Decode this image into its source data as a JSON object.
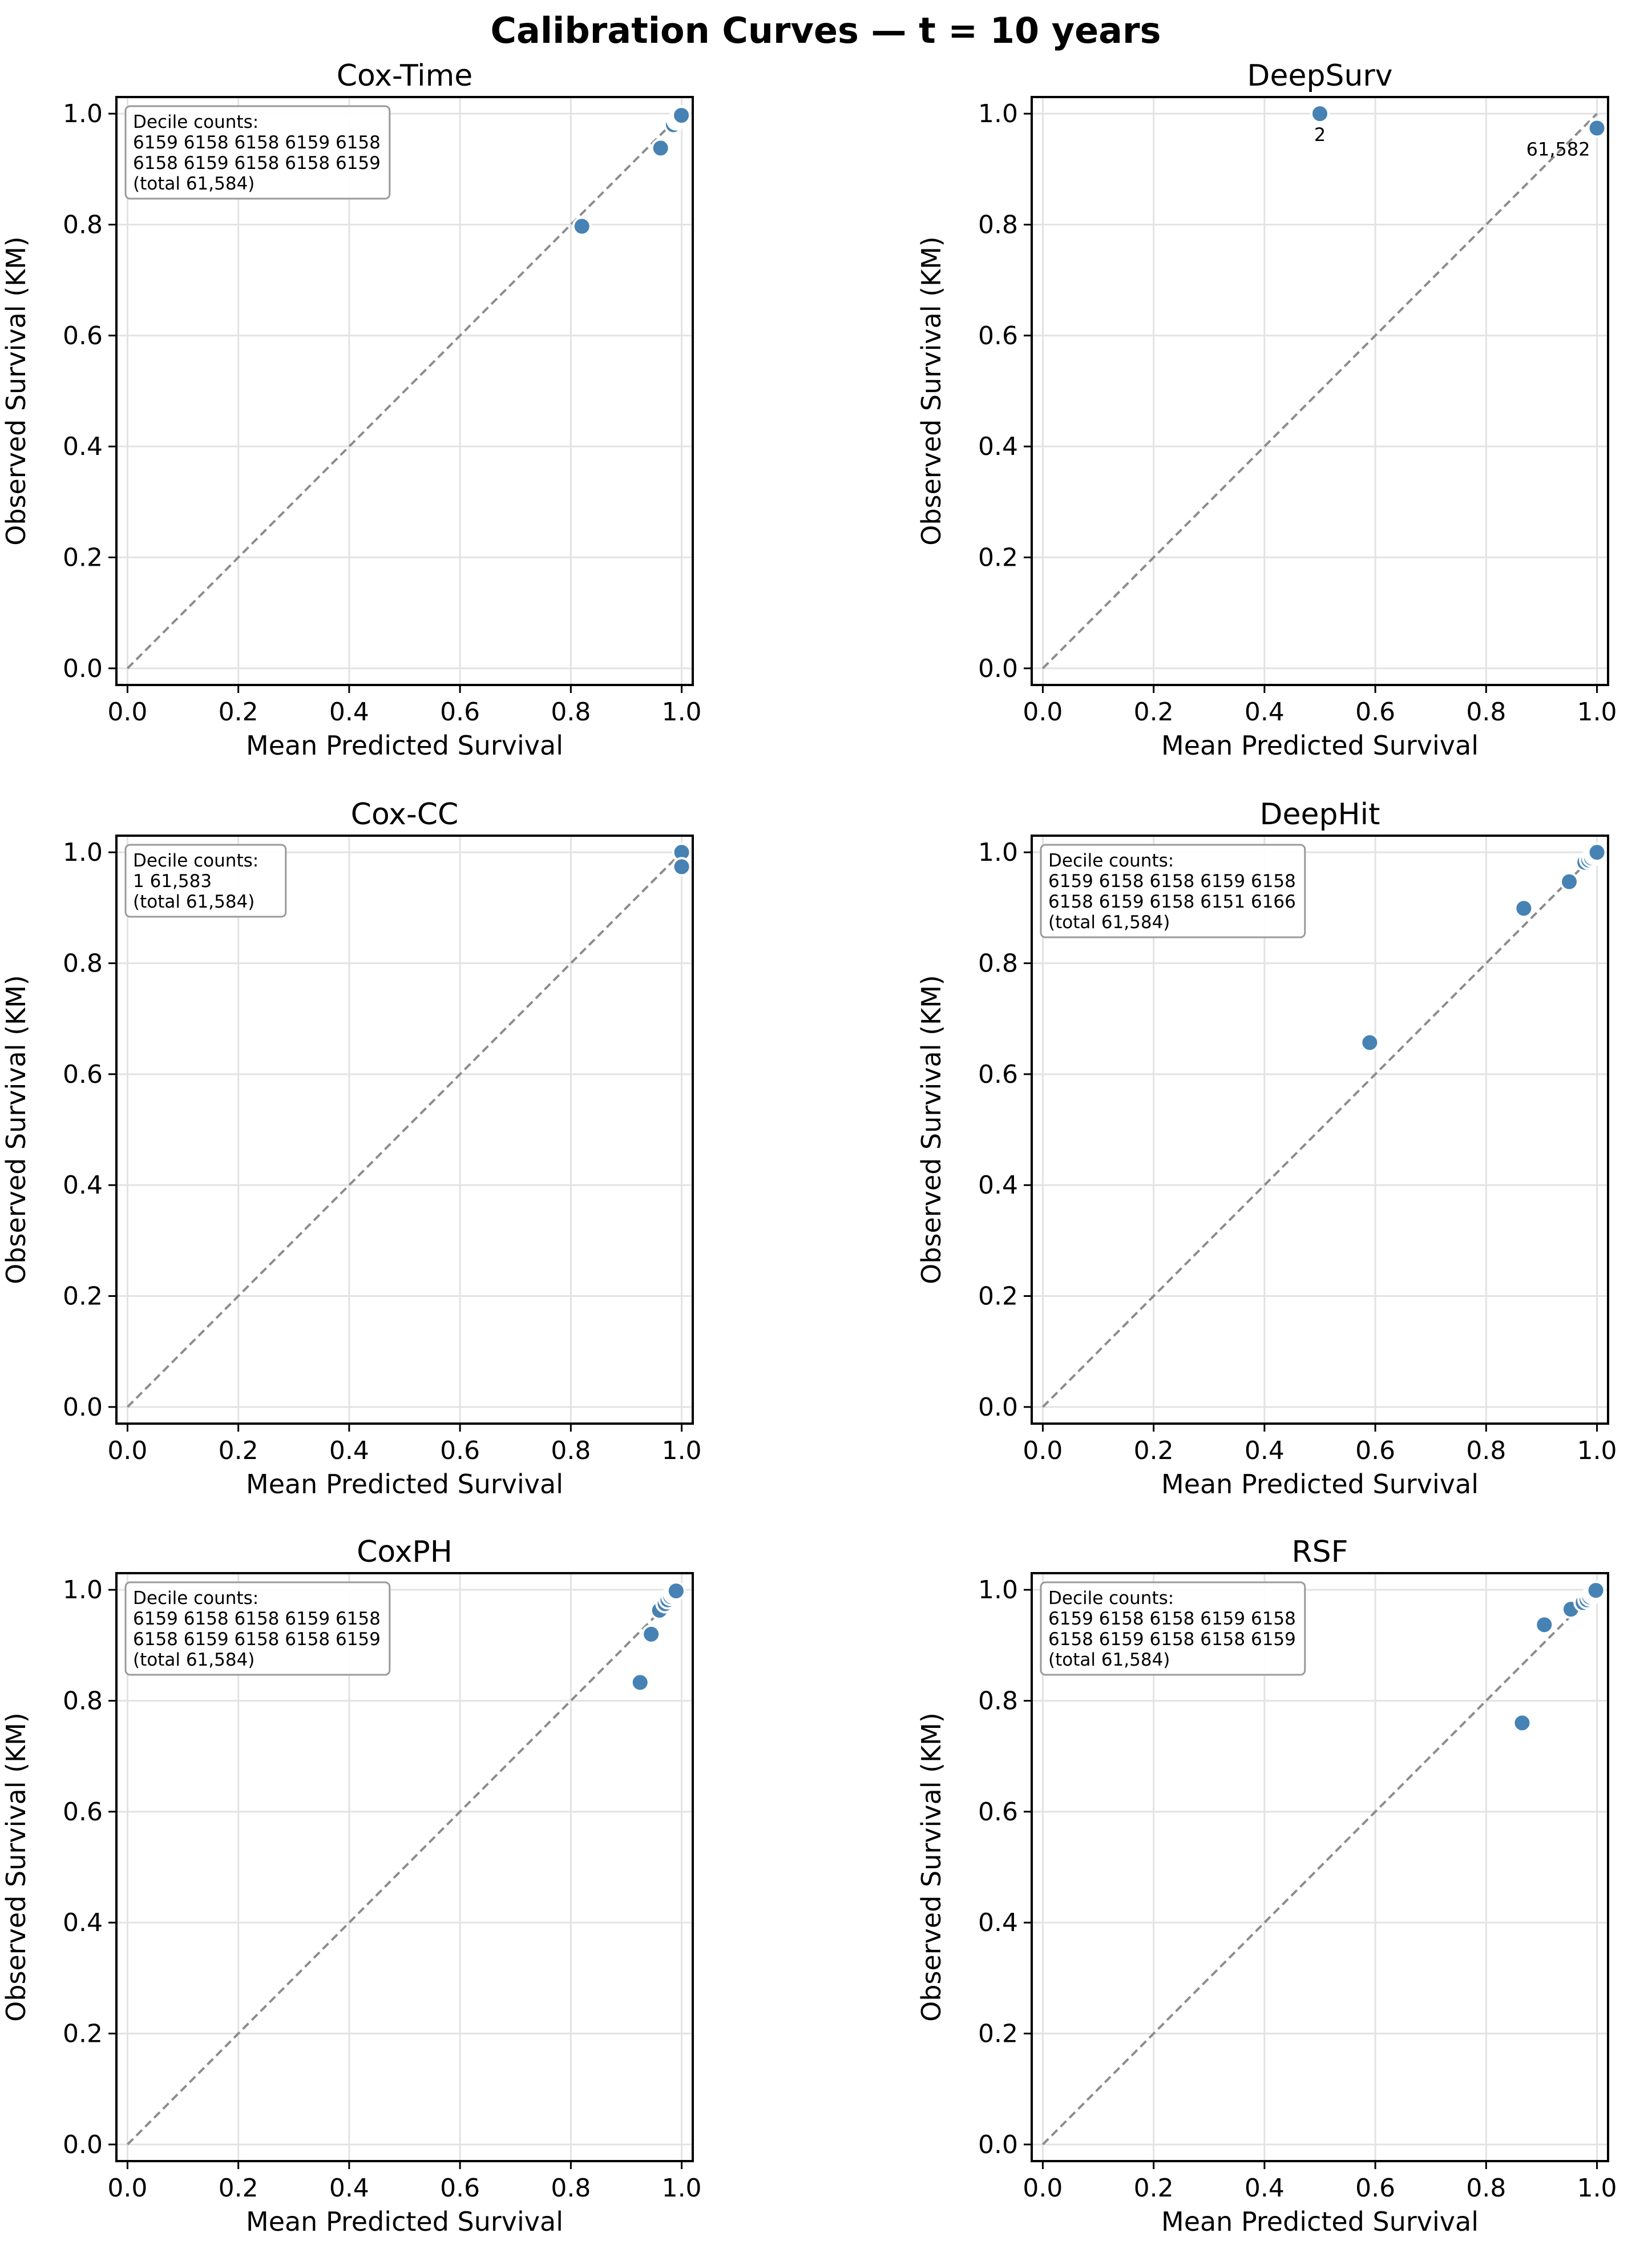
{
  "figure": {
    "title": "Calibration Curves — t = 10 years",
    "point_color": "#4682b4",
    "diagonal_color": "#8c8c8c"
  },
  "chart_data": [
    {
      "type": "scatter",
      "title": "Cox-Time",
      "xlabel": "Mean Predicted Survival",
      "ylabel": "Observed Survival (KM)",
      "xlim": [
        0.0,
        1.0
      ],
      "ylim": [
        0.0,
        1.0
      ],
      "xticks": [
        "0.0",
        "0.2",
        "0.4",
        "0.6",
        "0.8",
        "1.0"
      ],
      "yticks": [
        "0.0",
        "0.2",
        "0.4",
        "0.6",
        "0.8",
        "1.0"
      ],
      "grid": true,
      "points": [
        [
          0.82,
          0.797
        ],
        [
          0.962,
          0.938
        ],
        [
          0.985,
          0.98
        ],
        [
          0.99,
          0.987
        ],
        [
          0.993,
          0.99
        ],
        [
          0.995,
          0.992
        ],
        [
          0.997,
          0.994
        ],
        [
          0.998,
          0.995
        ],
        [
          0.999,
          0.996
        ],
        [
          0.9995,
          0.997
        ]
      ],
      "point_labels": [],
      "annotation_lines": [
        "Decile counts:",
        "6159 6158 6158 6159 6158",
        "6158 6159 6158 6158 6159",
        "(total 61,584)"
      ]
    },
    {
      "type": "scatter",
      "title": "DeepSurv",
      "xlabel": "Mean Predicted Survival",
      "ylabel": "Observed Survival (KM)",
      "xlim": [
        0.0,
        1.0
      ],
      "ylim": [
        0.0,
        1.0
      ],
      "xticks": [
        "0.0",
        "0.2",
        "0.4",
        "0.6",
        "0.8",
        "1.0"
      ],
      "yticks": [
        "0.0",
        "0.2",
        "0.4",
        "0.6",
        "0.8",
        "1.0"
      ],
      "grid": true,
      "points": [
        [
          0.5,
          1.0
        ],
        [
          1.0,
          0.974
        ]
      ],
      "point_labels": [
        "2",
        "61,582"
      ],
      "annotation_lines": []
    },
    {
      "type": "scatter",
      "title": "Cox-CC",
      "xlabel": "Mean Predicted Survival",
      "ylabel": "Observed Survival (KM)",
      "xlim": [
        0.0,
        1.0
      ],
      "ylim": [
        0.0,
        1.0
      ],
      "xticks": [
        "0.0",
        "0.2",
        "0.4",
        "0.6",
        "0.8",
        "1.0"
      ],
      "yticks": [
        "0.0",
        "0.2",
        "0.4",
        "0.6",
        "0.8",
        "1.0"
      ],
      "grid": true,
      "points": [
        [
          1.0,
          1.0
        ],
        [
          1.0,
          0.974
        ]
      ],
      "point_labels": [],
      "annotation_lines": [
        "Decile counts:",
        "1 61,583",
        "(total 61,584)"
      ]
    },
    {
      "type": "scatter",
      "title": "DeepHit",
      "xlabel": "Mean Predicted Survival",
      "ylabel": "Observed Survival (KM)",
      "xlim": [
        0.0,
        1.0
      ],
      "ylim": [
        0.0,
        1.0
      ],
      "xticks": [
        "0.0",
        "0.2",
        "0.4",
        "0.6",
        "0.8",
        "1.0"
      ],
      "yticks": [
        "0.0",
        "0.2",
        "0.4",
        "0.6",
        "0.8",
        "1.0"
      ],
      "grid": true,
      "points": [
        [
          0.59,
          0.657
        ],
        [
          0.868,
          0.899
        ],
        [
          0.95,
          0.947
        ],
        [
          0.978,
          0.982
        ],
        [
          0.985,
          0.986
        ],
        [
          0.99,
          0.99
        ],
        [
          0.994,
          0.994
        ],
        [
          0.997,
          0.997
        ],
        [
          0.999,
          0.999
        ],
        [
          1.0,
          1.0
        ]
      ],
      "point_labels": [],
      "annotation_lines": [
        "Decile counts:",
        "6159 6158 6158 6159 6158",
        "6158 6159 6158 6151 6166",
        "(total 61,584)"
      ]
    },
    {
      "type": "scatter",
      "title": "CoxPH",
      "xlabel": "Mean Predicted Survival",
      "ylabel": "Observed Survival (KM)",
      "xlim": [
        0.0,
        1.0
      ],
      "ylim": [
        0.0,
        1.0
      ],
      "xticks": [
        "0.0",
        "0.2",
        "0.4",
        "0.6",
        "0.8",
        "1.0"
      ],
      "yticks": [
        "0.0",
        "0.2",
        "0.4",
        "0.6",
        "0.8",
        "1.0"
      ],
      "grid": true,
      "points": [
        [
          0.925,
          0.833
        ],
        [
          0.945,
          0.92
        ],
        [
          0.96,
          0.963
        ],
        [
          0.97,
          0.975
        ],
        [
          0.975,
          0.982
        ],
        [
          0.98,
          0.988
        ],
        [
          0.984,
          0.992
        ],
        [
          0.987,
          0.995
        ],
        [
          0.989,
          0.997
        ],
        [
          0.99,
          0.998
        ]
      ],
      "point_labels": [],
      "annotation_lines": [
        "Decile counts:",
        "6159 6158 6158 6159 6158",
        "6158 6159 6158 6158 6159",
        "(total 61,584)"
      ]
    },
    {
      "type": "scatter",
      "title": "RSF",
      "xlabel": "Mean Predicted Survival",
      "ylabel": "Observed Survival (KM)",
      "xlim": [
        0.0,
        1.0
      ],
      "ylim": [
        0.0,
        1.0
      ],
      "xticks": [
        "0.0",
        "0.2",
        "0.4",
        "0.6",
        "0.8",
        "1.0"
      ],
      "yticks": [
        "0.0",
        "0.2",
        "0.4",
        "0.6",
        "0.8",
        "1.0"
      ],
      "grid": true,
      "points": [
        [
          0.865,
          0.76
        ],
        [
          0.905,
          0.937
        ],
        [
          0.953,
          0.965
        ],
        [
          0.975,
          0.977
        ],
        [
          0.982,
          0.982
        ],
        [
          0.987,
          0.987
        ],
        [
          0.991,
          0.991
        ],
        [
          0.994,
          0.994
        ],
        [
          0.996,
          0.997
        ],
        [
          0.998,
          0.999
        ]
      ],
      "point_labels": [],
      "annotation_lines": [
        "Decile counts:",
        "6159 6158 6158 6159 6158",
        "6158 6159 6158 6158 6159",
        "(total 61,584)"
      ]
    }
  ]
}
